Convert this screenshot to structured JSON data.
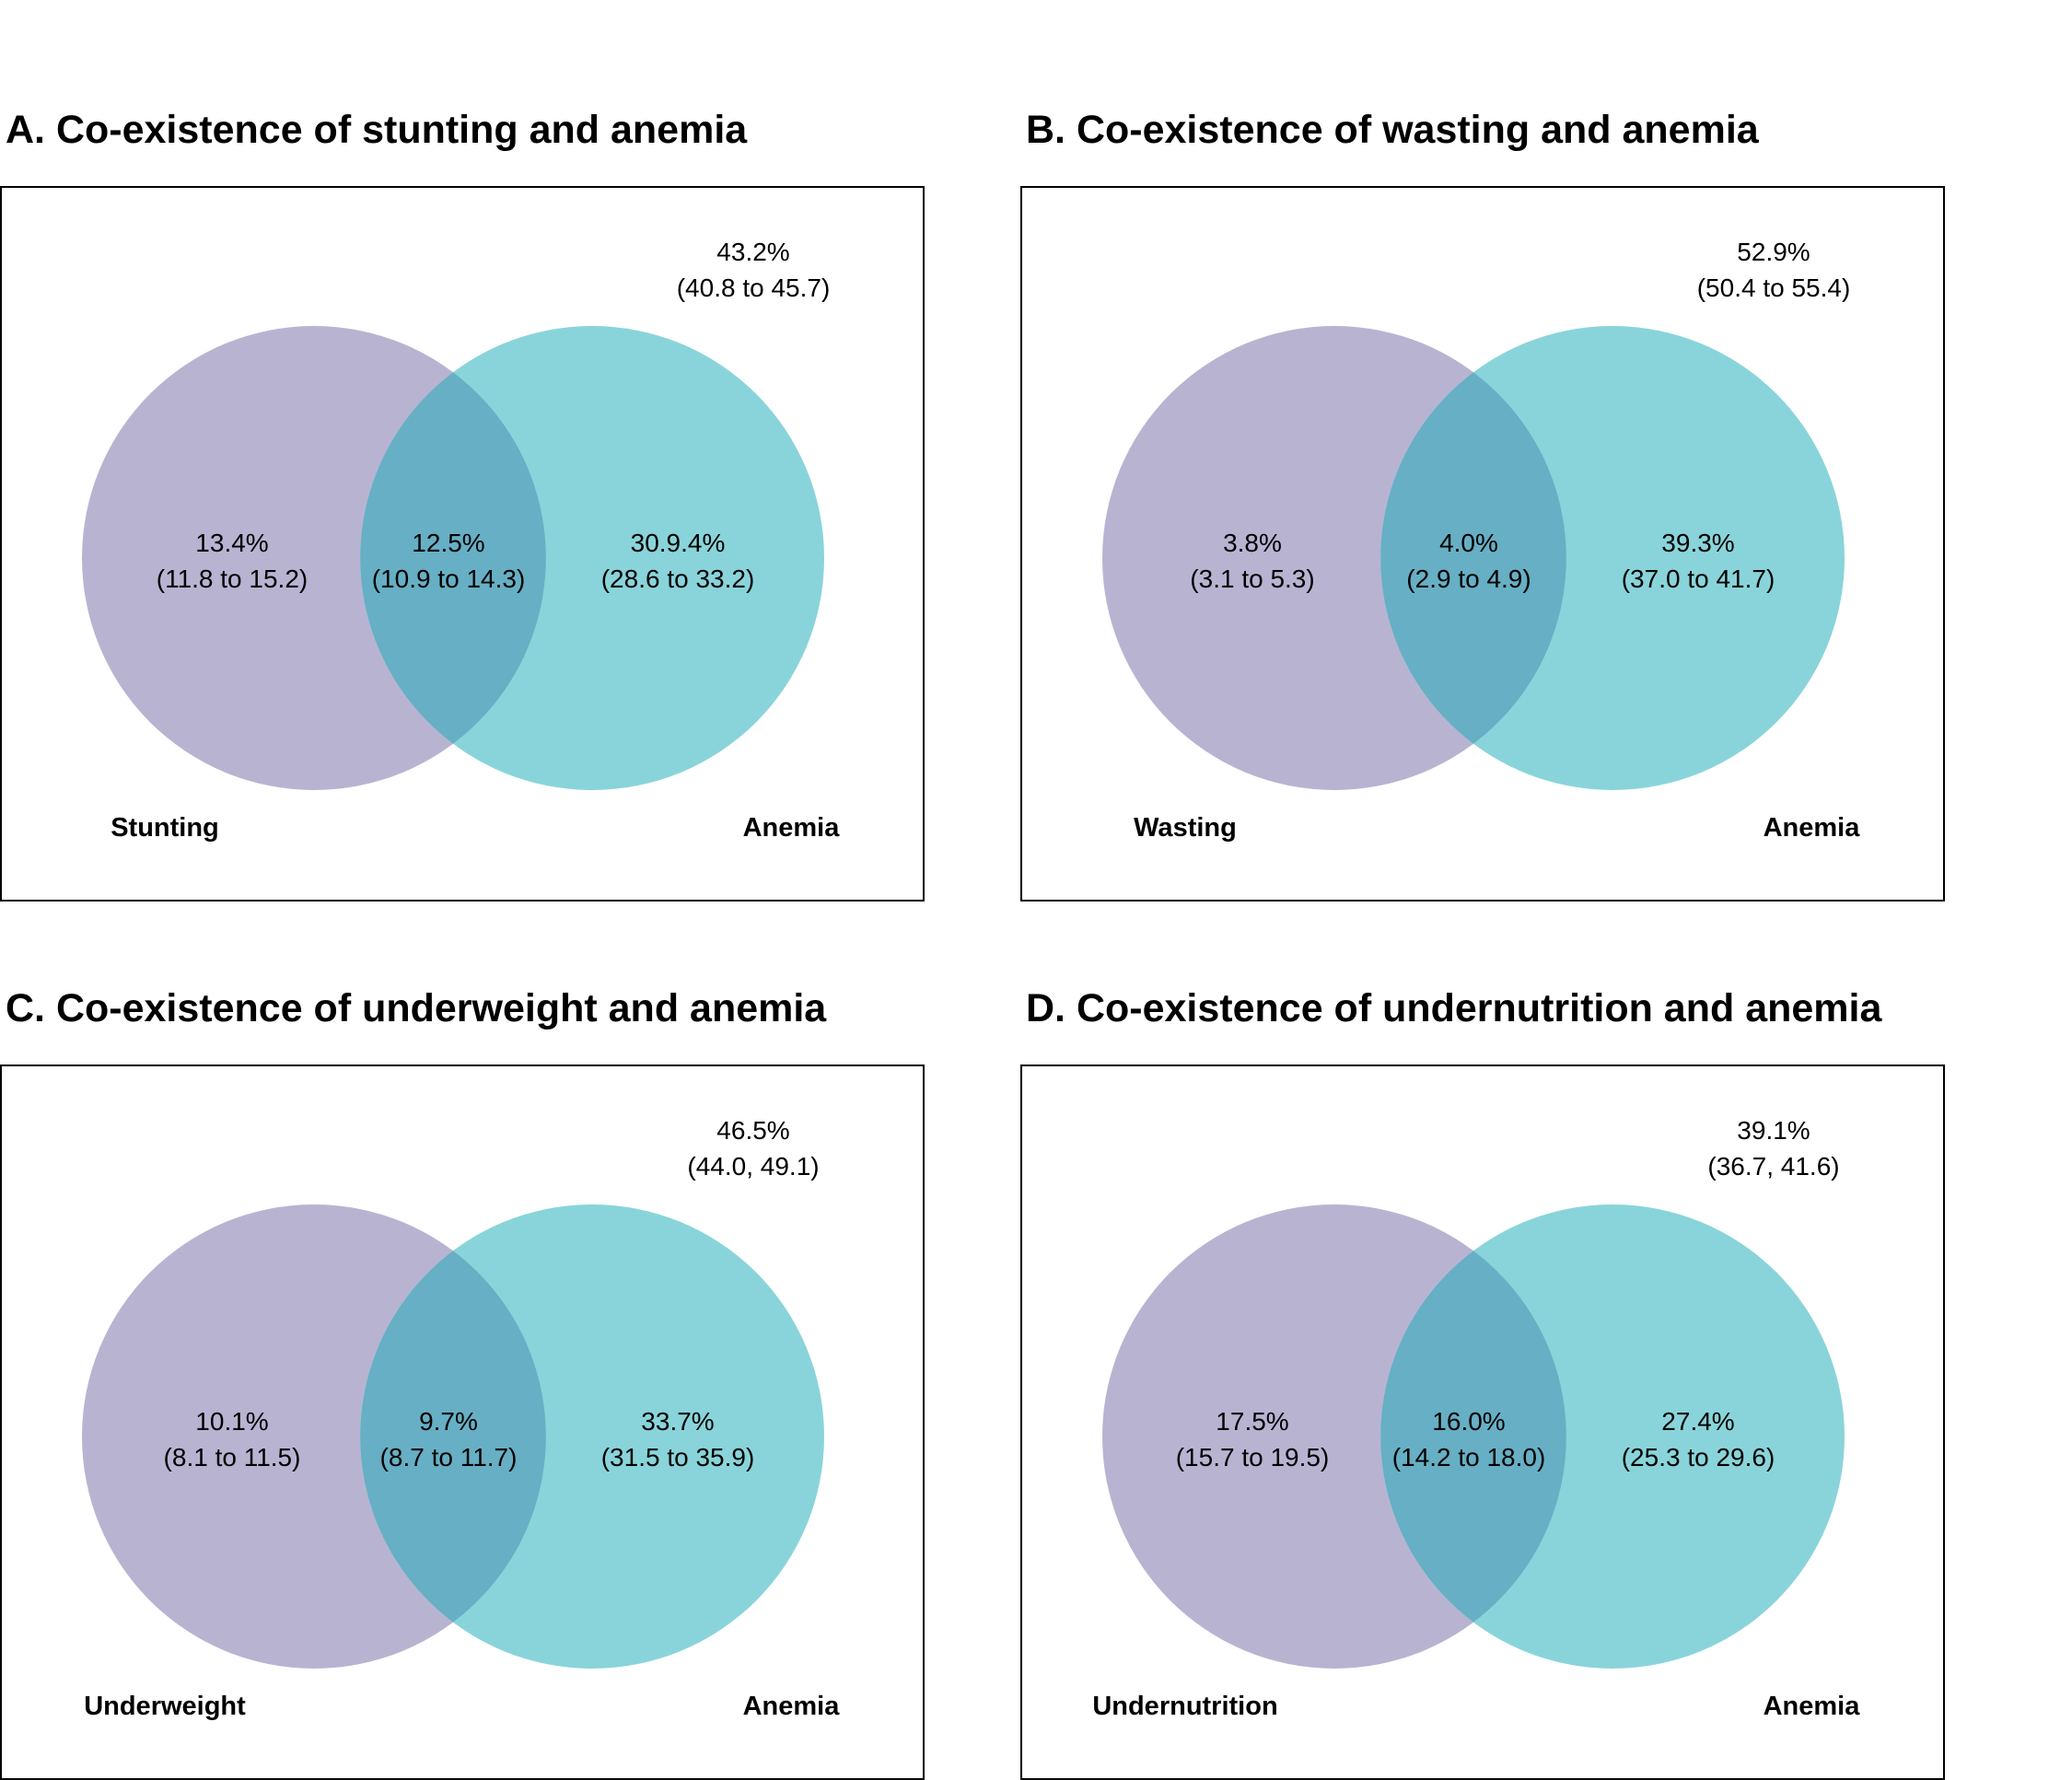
{
  "chart_data": [
    {
      "type": "venn",
      "title": "A. Co-existence of stunting and anemia",
      "sets": [
        "Stunting",
        "Anemia"
      ],
      "regions": {
        "left_only": {
          "value": "13.4%",
          "ci": "(11.8 to 15.2)"
        },
        "overlap": {
          "value": "12.5%",
          "ci": "(10.9 to 14.3)"
        },
        "right_only": {
          "value": "30.9.4%",
          "ci": "(28.6 to 33.2)"
        },
        "neither": {
          "value": "43.2%",
          "ci": "(40.8 to 45.7)"
        }
      }
    },
    {
      "type": "venn",
      "title": "B. Co-existence of wasting and anemia",
      "sets": [
        "Wasting",
        "Anemia"
      ],
      "regions": {
        "left_only": {
          "value": "3.8%",
          "ci": "(3.1 to 5.3)"
        },
        "overlap": {
          "value": "4.0%",
          "ci": "(2.9 to 4.9)"
        },
        "right_only": {
          "value": "39.3%",
          "ci": "(37.0 to 41.7)"
        },
        "neither": {
          "value": "52.9%",
          "ci": "(50.4 to 55.4)"
        }
      }
    },
    {
      "type": "venn",
      "title": "C. Co-existence of underweight and anemia",
      "sets": [
        "Underweight",
        "Anemia"
      ],
      "regions": {
        "left_only": {
          "value": "10.1%",
          "ci": "(8.1 to 11.5)"
        },
        "overlap": {
          "value": "9.7%",
          "ci": "(8.7 to 11.7)"
        },
        "right_only": {
          "value": "33.7%",
          "ci": "(31.5 to 35.9)"
        },
        "neither": {
          "value": "46.5%",
          "ci": "(44.0, 49.1)"
        }
      }
    },
    {
      "type": "venn",
      "title": "D. Co-existence of undernutrition and anemia",
      "sets": [
        "Undernutrition",
        "Anemia"
      ],
      "regions": {
        "left_only": {
          "value": "17.5%",
          "ci": "(15.7 to 19.5)"
        },
        "overlap": {
          "value": "16.0%",
          "ci": "(14.2 to 18.0)"
        },
        "right_only": {
          "value": "27.4%",
          "ci": "(25.3 to 29.6)"
        },
        "neither": {
          "value": "39.1%",
          "ci": "(36.7, 41.6)"
        }
      }
    }
  ],
  "colors": {
    "left_circle": "#B9B3D2",
    "right_circle": "#89D4DA",
    "overlap": "#67AFC4",
    "border": "#000000"
  }
}
